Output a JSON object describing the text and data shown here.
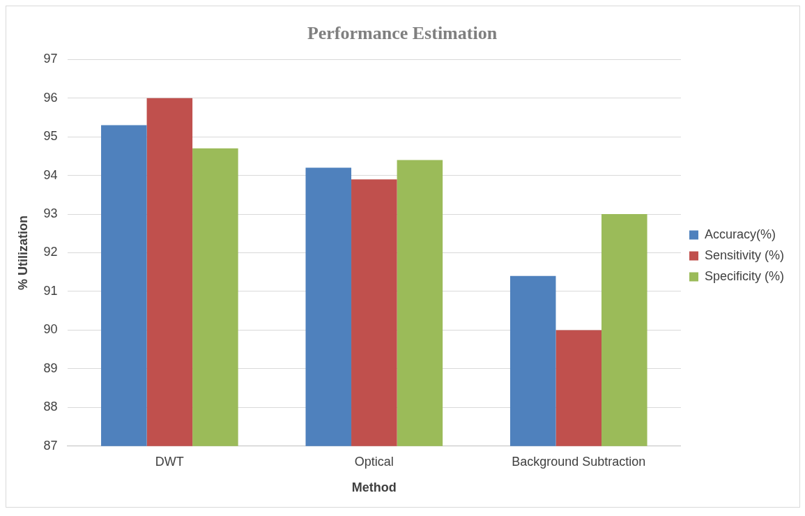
{
  "chart_data": {
    "type": "bar",
    "title": "Performance Estimation",
    "xlabel": "Method",
    "ylabel": "% Utilization",
    "categories": [
      "DWT",
      "Optical",
      "Background Subtraction"
    ],
    "series": [
      {
        "name": "Accuracy(%)",
        "color": "#4f81bd",
        "values": [
          95.3,
          94.2,
          91.4
        ]
      },
      {
        "name": "Sensitivity (%)",
        "color": "#c0504d",
        "values": [
          96.0,
          93.9,
          90.0
        ]
      },
      {
        "name": "Specificity (%)",
        "color": "#9bbb59",
        "values": [
          94.7,
          94.4,
          93.0
        ]
      }
    ],
    "ylim": [
      87,
      97
    ],
    "yticks": [
      87,
      88,
      89,
      90,
      91,
      92,
      93,
      94,
      95,
      96,
      97
    ],
    "grid": "y",
    "legend": "right"
  }
}
